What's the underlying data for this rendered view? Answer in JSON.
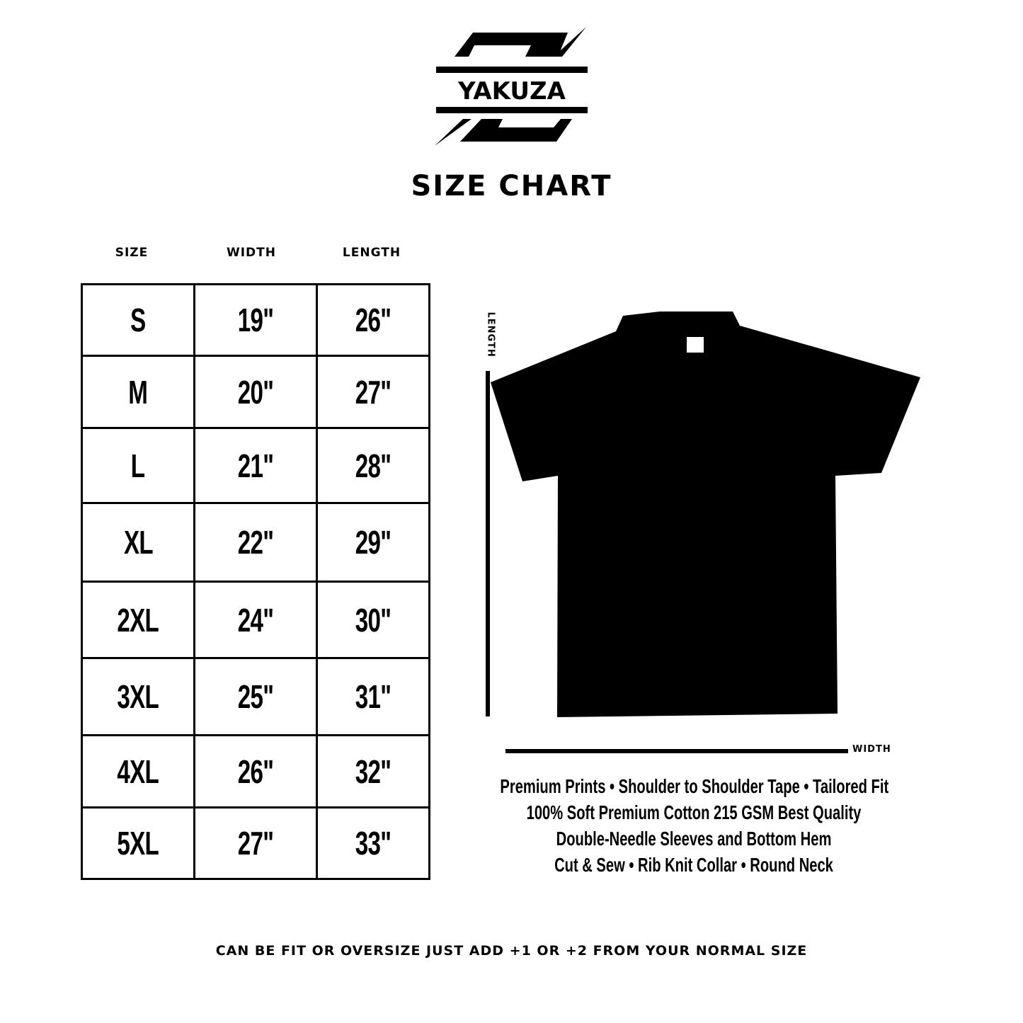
{
  "logo": {
    "brand": "YAKUZA"
  },
  "title": "SIZE CHART",
  "table": {
    "headers": [
      "SIZE",
      "WIDTH",
      "LENGTH"
    ],
    "rows": [
      [
        "S",
        "19\"",
        "26\""
      ],
      [
        "M",
        "20\"",
        "27\""
      ],
      [
        "L",
        "21\"",
        "28\""
      ],
      [
        "XL",
        "22\"",
        "29\""
      ],
      [
        "2XL",
        "24\"",
        "30\""
      ],
      [
        "3XL",
        "25\"",
        "31\""
      ],
      [
        "4XL",
        "26\"",
        "32\""
      ],
      [
        "5XL",
        "27\"",
        "33\""
      ]
    ]
  },
  "diagram": {
    "length_label": "LENGTH",
    "width_label": "WIDTH",
    "shirt_color": "#000000"
  },
  "features": [
    "Premium Prints • Shoulder to Shoulder Tape • Tailored Fit",
    "100% Soft Premium Cotton 215 GSM Best Quality",
    "Double-Needle Sleeves and Bottom Hem",
    "Cut & Sew • Rib Knit Collar • Round Neck"
  ],
  "note": "CAN BE FIT OR OVERSIZE JUST ADD +1 OR +2 FROM YOUR NORMAL SIZE"
}
